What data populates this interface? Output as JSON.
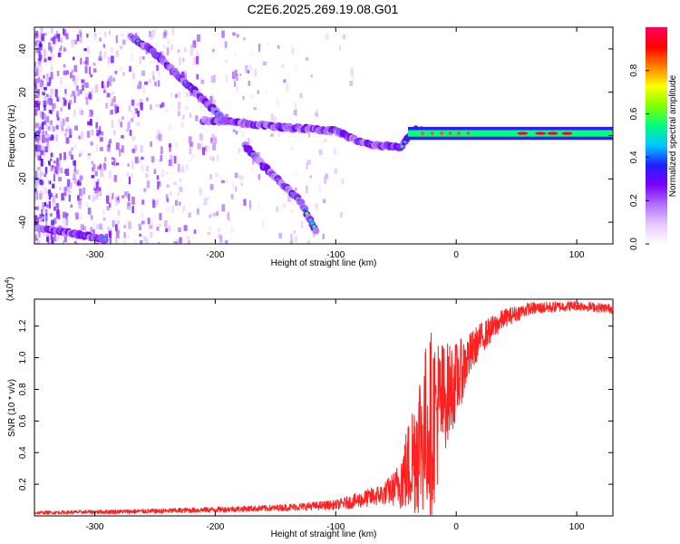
{
  "title": "C2E6.2025.269.19.08.G01",
  "chart_data": [
    {
      "type": "heatmap",
      "name": "spectrogram",
      "xlabel": "Height of straight line (km)",
      "ylabel": "Frequency (Hz)",
      "xlim": [
        -350,
        130
      ],
      "ylim": [
        -50,
        50
      ],
      "xticks": [
        -300,
        -200,
        -100,
        0,
        100
      ],
      "yticks": [
        -40,
        -20,
        0,
        20,
        40
      ],
      "colorbar": {
        "label": "Normalized spectral amplitude",
        "range": [
          0,
          1
        ],
        "ticks": [
          "0.0",
          "0.2",
          "0.4",
          "0.6",
          "0.8"
        ],
        "colors": [
          "#ffffff",
          "#e8c8ff",
          "#b070ff",
          "#7a00ff",
          "#2020ff",
          "#00c8ff",
          "#00ff80",
          "#80ff00",
          "#ffff00",
          "#ff8000",
          "#ff0000",
          "#ff0060"
        ]
      },
      "ridges": [
        {
          "name": "direct-signal",
          "points": [
            [
              -210,
              7
            ],
            [
              -180,
              6
            ],
            [
              -150,
              4
            ],
            [
              -120,
              3
            ],
            [
              -100,
              2
            ],
            [
              -80,
              -3
            ],
            [
              -60,
              -5
            ],
            [
              -45,
              -5
            ],
            [
              -35,
              3
            ],
            [
              -20,
              2
            ],
            [
              0,
              1
            ],
            [
              40,
              1
            ],
            [
              70,
              1
            ],
            [
              100,
              1
            ],
            [
              130,
              1
            ]
          ]
        },
        {
          "name": "reflection-upper",
          "points": [
            [
              -270,
              46
            ],
            [
              -250,
              38
            ],
            [
              -235,
              30
            ],
            [
              -220,
              22
            ],
            [
              -205,
              14
            ],
            [
              -190,
              6
            ]
          ]
        },
        {
          "name": "reflection-lower",
          "points": [
            [
              -175,
              -5
            ],
            [
              -160,
              -14
            ],
            [
              -145,
              -22
            ],
            [
              -130,
              -30
            ],
            [
              -115,
              -45
            ]
          ]
        },
        {
          "name": "lower-edge",
          "points": [
            [
              -350,
              -42
            ],
            [
              -320,
              -45
            ],
            [
              -290,
              -48
            ]
          ]
        }
      ]
    },
    {
      "type": "line",
      "name": "snr",
      "xlabel": "Height of straight line (km)",
      "ylabel": "SNR (10 * v/v)",
      "multiplier": "(x10",
      "multiplier_exp": "4",
      "multiplier_close": ")",
      "xlim": [
        -350,
        130
      ],
      "ylim": [
        0,
        1.37
      ],
      "xticks": [
        -300,
        -200,
        -100,
        0,
        100
      ],
      "yticks": [
        "0.2",
        "0.4",
        "0.6",
        "0.8",
        "1.0",
        "1.2"
      ],
      "color": "#ff2020",
      "envelope": [
        {
          "x": -350,
          "base": 0.02,
          "amp": 0.01
        },
        {
          "x": -250,
          "base": 0.03,
          "amp": 0.015
        },
        {
          "x": -150,
          "base": 0.05,
          "amp": 0.02
        },
        {
          "x": -100,
          "base": 0.07,
          "amp": 0.03
        },
        {
          "x": -80,
          "base": 0.1,
          "amp": 0.05
        },
        {
          "x": -60,
          "base": 0.14,
          "amp": 0.07
        },
        {
          "x": -50,
          "base": 0.18,
          "amp": 0.12
        },
        {
          "x": -40,
          "base": 0.3,
          "amp": 0.3
        },
        {
          "x": -30,
          "base": 0.5,
          "amp": 0.5
        },
        {
          "x": -20,
          "base": 0.6,
          "amp": 0.6
        },
        {
          "x": -10,
          "base": 0.75,
          "amp": 0.35
        },
        {
          "x": 0,
          "base": 0.85,
          "amp": 0.25
        },
        {
          "x": 10,
          "base": 1.0,
          "amp": 0.15
        },
        {
          "x": 20,
          "base": 1.12,
          "amp": 0.1
        },
        {
          "x": 40,
          "base": 1.25,
          "amp": 0.06
        },
        {
          "x": 60,
          "base": 1.31,
          "amp": 0.04
        },
        {
          "x": 100,
          "base": 1.33,
          "amp": 0.03
        },
        {
          "x": 130,
          "base": 1.31,
          "amp": 0.03
        }
      ]
    }
  ]
}
